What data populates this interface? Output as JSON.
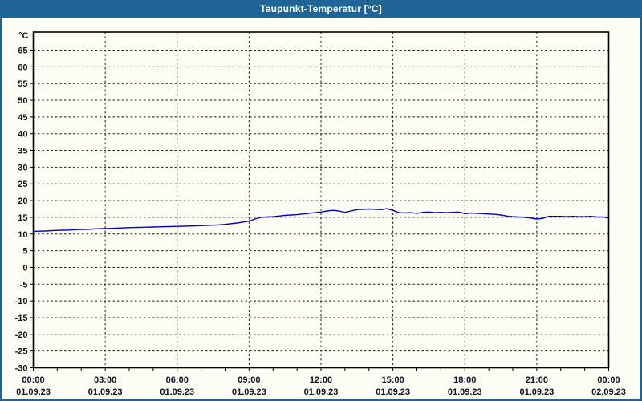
{
  "window": {
    "title": "Taupunkt-Temperatur [°C]"
  },
  "colors": {
    "titlebar": "#1e6496",
    "window_border": "#1e6496",
    "content_background": "#fcfdf4",
    "axis": "#000000",
    "grid": "#1a1a1a",
    "label_text": "#10101e",
    "series_line": "#0000c8"
  },
  "chart_data": {
    "type": "line",
    "title": "Taupunkt-Temperatur [°C]",
    "xlabel": "",
    "ylabel": "°C",
    "grid": "dashed",
    "legend_position": "none",
    "y_axis": {
      "unit_label": "°C",
      "tick_labels": [
        "65",
        "60",
        "55",
        "50",
        "45",
        "40",
        "35",
        "30",
        "25",
        "20",
        "15",
        "10",
        "5",
        "0",
        "-5",
        "-10",
        "-15",
        "-20",
        "-25",
        "-30"
      ],
      "tick_values": [
        65,
        60,
        55,
        50,
        45,
        40,
        35,
        30,
        25,
        20,
        15,
        10,
        5,
        0,
        -5,
        -10,
        -15,
        -20,
        -25,
        -30
      ],
      "ylim": [
        -30,
        70.4
      ]
    },
    "x_axis": {
      "hours_span": 24,
      "major_tick_every_hours": 3,
      "minor_tick_every_hours": 1,
      "tick_labels": [
        {
          "time": "00:00",
          "date": "01.09.23"
        },
        {
          "time": "03:00",
          "date": "01.09.23"
        },
        {
          "time": "06:00",
          "date": "01.09.23"
        },
        {
          "time": "09:00",
          "date": "01.09.23"
        },
        {
          "time": "12:00",
          "date": "01.09.23"
        },
        {
          "time": "15:00",
          "date": "01.09.23"
        },
        {
          "time": "18:00",
          "date": "01.09.23"
        },
        {
          "time": "21:00",
          "date": "01.09.23"
        },
        {
          "time": "00:00",
          "date": "02.09.23"
        }
      ]
    },
    "series": [
      {
        "name": "Taupunkt-Temperatur",
        "color": "#0000c8",
        "x_start_hour": 0,
        "x_step_hours": 0.25,
        "values": [
          10.8,
          10.85,
          10.9,
          11.0,
          11.1,
          11.15,
          11.2,
          11.3,
          11.35,
          11.4,
          11.5,
          11.6,
          11.65,
          11.7,
          11.75,
          11.85,
          11.9,
          11.95,
          12.0,
          12.05,
          12.1,
          12.15,
          12.2,
          12.25,
          12.3,
          12.35,
          12.4,
          12.45,
          12.5,
          12.6,
          12.65,
          12.75,
          12.9,
          13.1,
          13.3,
          13.6,
          13.9,
          14.5,
          15.0,
          15.1,
          15.2,
          15.4,
          15.6,
          15.7,
          15.8,
          16.0,
          16.2,
          16.4,
          16.6,
          16.9,
          17.1,
          16.9,
          16.5,
          16.9,
          17.3,
          17.4,
          17.5,
          17.4,
          17.3,
          17.6,
          17.1,
          16.4,
          16.3,
          16.4,
          16.2,
          16.5,
          16.6,
          16.4,
          16.5,
          16.4,
          16.5,
          16.6,
          16.1,
          16.3,
          16.2,
          16.1,
          16.0,
          15.9,
          15.7,
          15.4,
          15.2,
          15.1,
          15.0,
          14.8,
          14.5,
          14.7,
          15.3,
          15.3,
          15.3,
          15.2,
          15.3,
          15.2,
          15.2,
          15.3,
          15.1,
          15.1,
          14.8
        ]
      }
    ]
  }
}
